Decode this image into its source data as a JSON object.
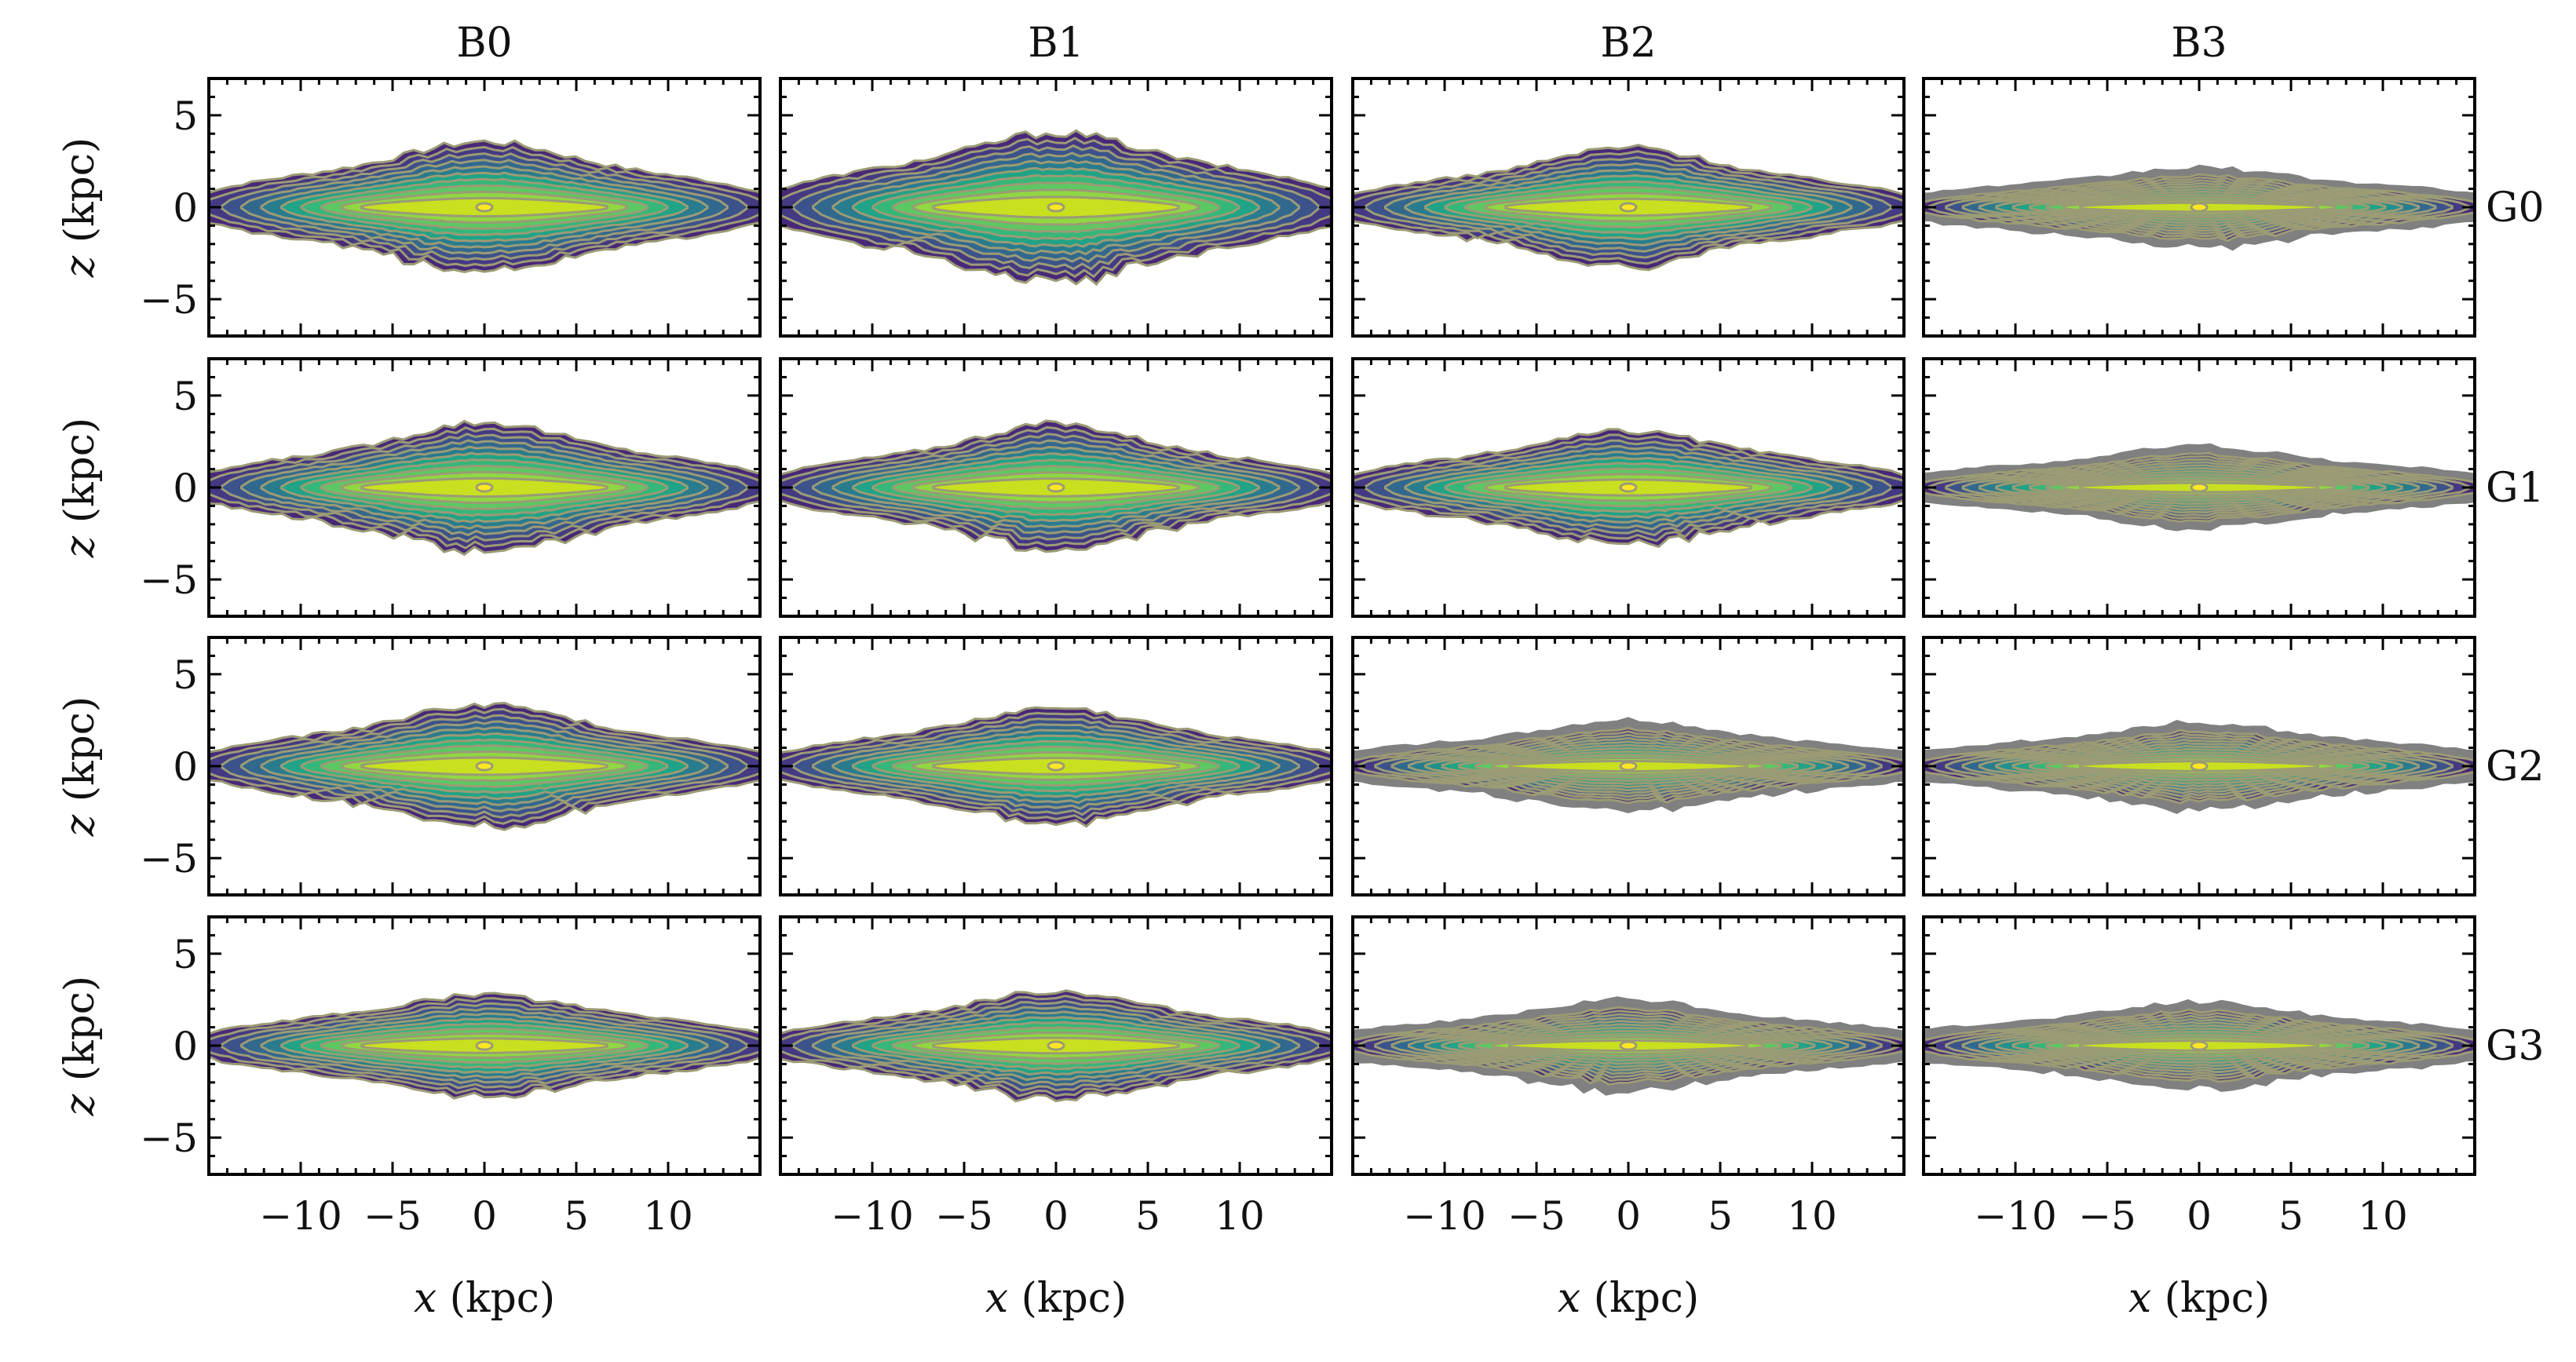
{
  "chart_data": {
    "type": "contour",
    "column_titles": [
      "B0",
      "B1",
      "B2",
      "B3"
    ],
    "row_labels": [
      "G0",
      "G1",
      "G2",
      "G3"
    ],
    "xlabel": "x (kpc)",
    "ylabel": "z (kpc)",
    "xlim": [
      -15,
      15
    ],
    "ylim": [
      -7,
      7
    ],
    "x_ticks": [
      -10,
      -5,
      0,
      5,
      10
    ],
    "x_tick_labels": [
      "−10",
      "−5",
      "0",
      "5",
      "10"
    ],
    "y_ticks": [
      -5,
      0,
      5
    ],
    "y_tick_labels": [
      "−5",
      "0",
      "5"
    ],
    "colormap": [
      "#482878",
      "#443983",
      "#3b528b",
      "#31688e",
      "#287c8e",
      "#21918c",
      "#20a386",
      "#35b779",
      "#5dc863",
      "#90d743",
      "#c8e020"
    ],
    "contour_line_color": "#9b9b75",
    "outer_halo_color": "#808080",
    "panels": [
      {
        "col": "B0",
        "row": "G0",
        "half_length_kpc": 15.0,
        "thickness_kpc": 2.2,
        "flare_kpc": 1.3,
        "levels": 10,
        "halo": false
      },
      {
        "col": "B1",
        "row": "G0",
        "half_length_kpc": 15.0,
        "thickness_kpc": 2.6,
        "flare_kpc": 1.4,
        "levels": 10,
        "halo": false
      },
      {
        "col": "B2",
        "row": "G0",
        "half_length_kpc": 15.0,
        "thickness_kpc": 1.9,
        "flare_kpc": 1.3,
        "levels": 10,
        "halo": false
      },
      {
        "col": "B3",
        "row": "G0",
        "half_length_kpc": 15.0,
        "thickness_kpc": 1.2,
        "flare_kpc": 0.6,
        "levels": 11,
        "halo": true
      },
      {
        "col": "B0",
        "row": "G1",
        "half_length_kpc": 15.0,
        "thickness_kpc": 2.1,
        "flare_kpc": 1.4,
        "levels": 10,
        "halo": false
      },
      {
        "col": "B1",
        "row": "G1",
        "half_length_kpc": 15.0,
        "thickness_kpc": 2.0,
        "flare_kpc": 1.4,
        "levels": 10,
        "halo": false
      },
      {
        "col": "B2",
        "row": "G1",
        "half_length_kpc": 15.0,
        "thickness_kpc": 1.9,
        "flare_kpc": 1.1,
        "levels": 10,
        "halo": false
      },
      {
        "col": "B3",
        "row": "G1",
        "half_length_kpc": 15.0,
        "thickness_kpc": 1.2,
        "flare_kpc": 0.7,
        "levels": 11,
        "halo": true
      },
      {
        "col": "B0",
        "row": "G2",
        "half_length_kpc": 15.0,
        "thickness_kpc": 2.0,
        "flare_kpc": 1.3,
        "levels": 10,
        "halo": false
      },
      {
        "col": "B1",
        "row": "G2",
        "half_length_kpc": 15.0,
        "thickness_kpc": 1.9,
        "flare_kpc": 1.2,
        "levels": 10,
        "halo": false
      },
      {
        "col": "B2",
        "row": "G2",
        "half_length_kpc": 15.0,
        "thickness_kpc": 1.3,
        "flare_kpc": 0.8,
        "levels": 11,
        "halo": true
      },
      {
        "col": "B3",
        "row": "G2",
        "half_length_kpc": 15.0,
        "thickness_kpc": 1.3,
        "flare_kpc": 0.7,
        "levels": 11,
        "halo": true
      },
      {
        "col": "B0",
        "row": "G3",
        "half_length_kpc": 15.0,
        "thickness_kpc": 1.8,
        "flare_kpc": 0.9,
        "levels": 10,
        "halo": false
      },
      {
        "col": "B1",
        "row": "G3",
        "half_length_kpc": 15.0,
        "thickness_kpc": 1.8,
        "flare_kpc": 1.1,
        "levels": 10,
        "halo": false
      },
      {
        "col": "B2",
        "row": "G3",
        "half_length_kpc": 15.0,
        "thickness_kpc": 1.3,
        "flare_kpc": 0.8,
        "levels": 11,
        "halo": true
      },
      {
        "col": "B3",
        "row": "G3",
        "half_length_kpc": 15.0,
        "thickness_kpc": 1.3,
        "flare_kpc": 0.7,
        "levels": 11,
        "halo": true
      }
    ]
  }
}
